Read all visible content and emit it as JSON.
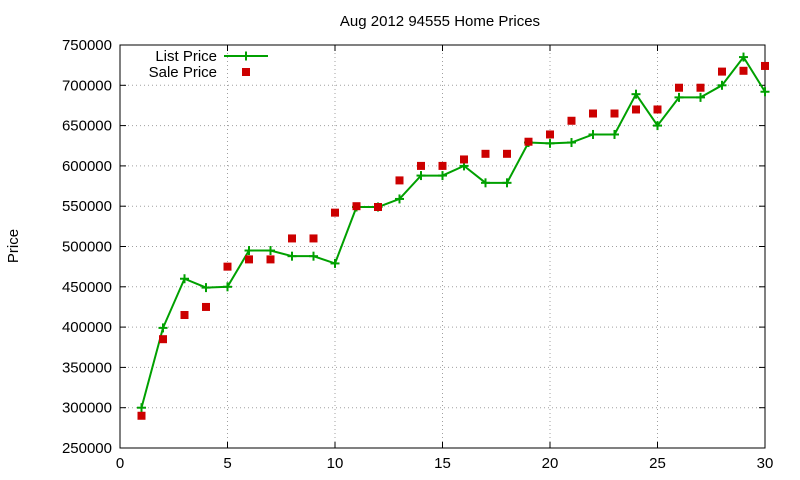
{
  "chart_data": {
    "type": "line",
    "title": "Aug 2012 94555 Home Prices",
    "xlabel": "",
    "ylabel": "Price",
    "xlim": [
      0,
      30
    ],
    "ylim": [
      250000,
      750000
    ],
    "grid": true,
    "legend_position": "top-left",
    "x_ticks": [
      0,
      5,
      10,
      15,
      20,
      25,
      30
    ],
    "y_ticks": [
      250000,
      300000,
      350000,
      400000,
      450000,
      500000,
      550000,
      600000,
      650000,
      700000,
      750000
    ],
    "x_tick_labels": [
      "0",
      "5",
      "10",
      "15",
      "20",
      "25",
      "30"
    ],
    "y_tick_labels": [
      "250000",
      "300000",
      "350000",
      "400000",
      "450000",
      "500000",
      "550000",
      "600000",
      "650000",
      "700000",
      "750000"
    ],
    "x": [
      1,
      2,
      3,
      4,
      5,
      6,
      7,
      8,
      9,
      10,
      11,
      12,
      13,
      14,
      15,
      16,
      17,
      18,
      19,
      20,
      21,
      22,
      23,
      24,
      25,
      26,
      27,
      28,
      29,
      30
    ],
    "series": [
      {
        "name": "List Price",
        "style": "line-with-plus-markers",
        "color": "#00a000",
        "values": [
          300000,
          399000,
          460000,
          449000,
          450000,
          495000,
          495000,
          488000,
          488000,
          479000,
          549000,
          549000,
          559000,
          588000,
          588000,
          600000,
          579000,
          579000,
          629000,
          628000,
          629000,
          639000,
          639000,
          689000,
          650000,
          685000,
          685000,
          700000,
          735000,
          692000
        ]
      },
      {
        "name": "Sale Price",
        "style": "square-markers",
        "color": "#cc0000",
        "values": [
          290000,
          385000,
          415000,
          425000,
          475000,
          484000,
          484000,
          510000,
          510000,
          542000,
          550000,
          549000,
          582000,
          600000,
          600000,
          608000,
          615000,
          615000,
          630000,
          639000,
          656000,
          665000,
          665000,
          670000,
          670000,
          697000,
          697000,
          717000,
          718000,
          724000
        ]
      }
    ]
  }
}
